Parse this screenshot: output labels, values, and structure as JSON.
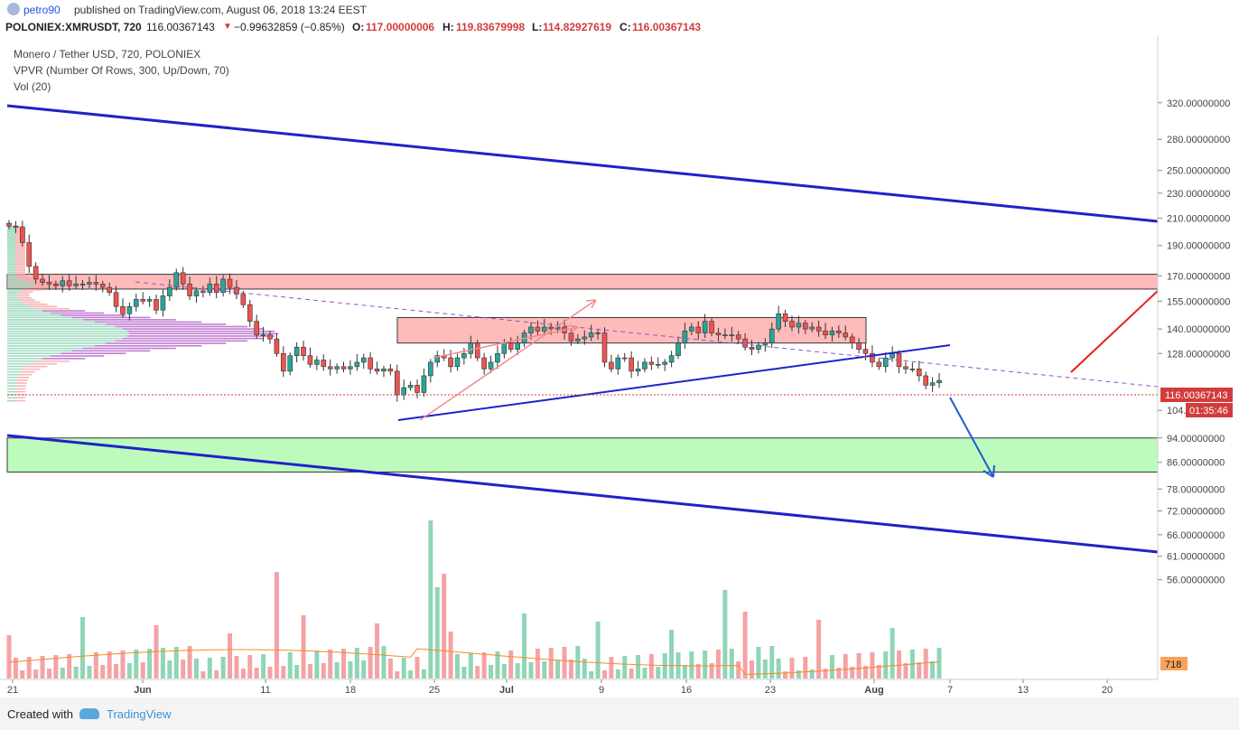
{
  "header": {
    "author": "petro90",
    "published_text": "published on TradingView.com, August 06, 2018 13:24 EEST"
  },
  "ohlc_bar": {
    "symbol": "POLONIEX:XMRUSDT, 720",
    "last": "116.00367143",
    "change": "−0.99632859 (−0.85%)",
    "open_label": "O:",
    "open": "117.00000006",
    "high_label": "H:",
    "high": "119.83679998",
    "low_label": "L:",
    "low": "114.82927619",
    "close_label": "C:",
    "close": "116.00367143"
  },
  "legend": {
    "title": "Monero / Tether USD, 720, POLONIEX",
    "indicator_vpvr": "VPVR (Number Of Rows, 300, Up/Down, 70)",
    "indicator_vol": "Vol (20)"
  },
  "footer": {
    "created_with": "Created with",
    "brand": "TradingView"
  },
  "colors": {
    "up": "#26a69a",
    "down": "#ef5350",
    "trendline": "#1f22c8",
    "resistance_fill": "#ffb3b3",
    "support_fill": "#b6fbb6",
    "price_label": "#d23c3c"
  },
  "chart_data": {
    "type": "candlestick",
    "y_axis_labels": [
      "320.00000000",
      "280.00000000",
      "250.00000000",
      "230.00000000",
      "210.00000000",
      "190.00000000",
      "170.00000000",
      "155.00000000",
      "140.00000000",
      "128.00000000",
      "116.00367143",
      "104.00000000",
      "94.00000000",
      "86.00000000",
      "78.00000000",
      "72.00000000",
      "66.00000000",
      "61.00000000",
      "56.00000000",
      "718"
    ],
    "y_axis_ticks": [
      320,
      280,
      250,
      230,
      210,
      190,
      170,
      155,
      140,
      128,
      104,
      94,
      86,
      78,
      72,
      66,
      61,
      56
    ],
    "x_axis_labels": [
      "21",
      "Jun",
      "11",
      "18",
      "25",
      "Jul",
      "9",
      "16",
      "23",
      "Aug",
      "7",
      "13",
      "20"
    ],
    "price_scale": "log",
    "ylim": [
      48,
      345
    ],
    "last_price": "116.00367143",
    "countdown": "01:35:46",
    "volume_last": "718",
    "zones": [
      {
        "name": "resistance-zone",
        "from": 162,
        "to": 171
      },
      {
        "name": "mid-resistance-zone",
        "from": 133,
        "to": 146
      },
      {
        "name": "support-zone",
        "from": 83,
        "to": 94
      }
    ],
    "close_prices": [
      204,
      203,
      192,
      176,
      168,
      166,
      165,
      164,
      167,
      164,
      165,
      165,
      166,
      165,
      163,
      160,
      152,
      148,
      152,
      156,
      155,
      156,
      150,
      158,
      163,
      172,
      165,
      158,
      161,
      160,
      165,
      160,
      168,
      163,
      159,
      153,
      144,
      137,
      137,
      135,
      128,
      120,
      127,
      131,
      127,
      123,
      125,
      122,
      121,
      122,
      121,
      122,
      124,
      126,
      121,
      120,
      121,
      120,
      110,
      113,
      114,
      111,
      118,
      124,
      127,
      126,
      122,
      126,
      128,
      133,
      126,
      121,
      124,
      128,
      133,
      130,
      133,
      138,
      141,
      139,
      141,
      140,
      141,
      138,
      134,
      135,
      136,
      138,
      138,
      124,
      121,
      126,
      126,
      120,
      121,
      124,
      123,
      123,
      124,
      127,
      133,
      139,
      141,
      138,
      144,
      138,
      137,
      137,
      137,
      135,
      131,
      130,
      132,
      133,
      140,
      148,
      144,
      141,
      143,
      140,
      141,
      139,
      137,
      139,
      138,
      136,
      133,
      130,
      128,
      124,
      122,
      126,
      128,
      122,
      121,
      121,
      118,
      114,
      115,
      116
    ]
  }
}
